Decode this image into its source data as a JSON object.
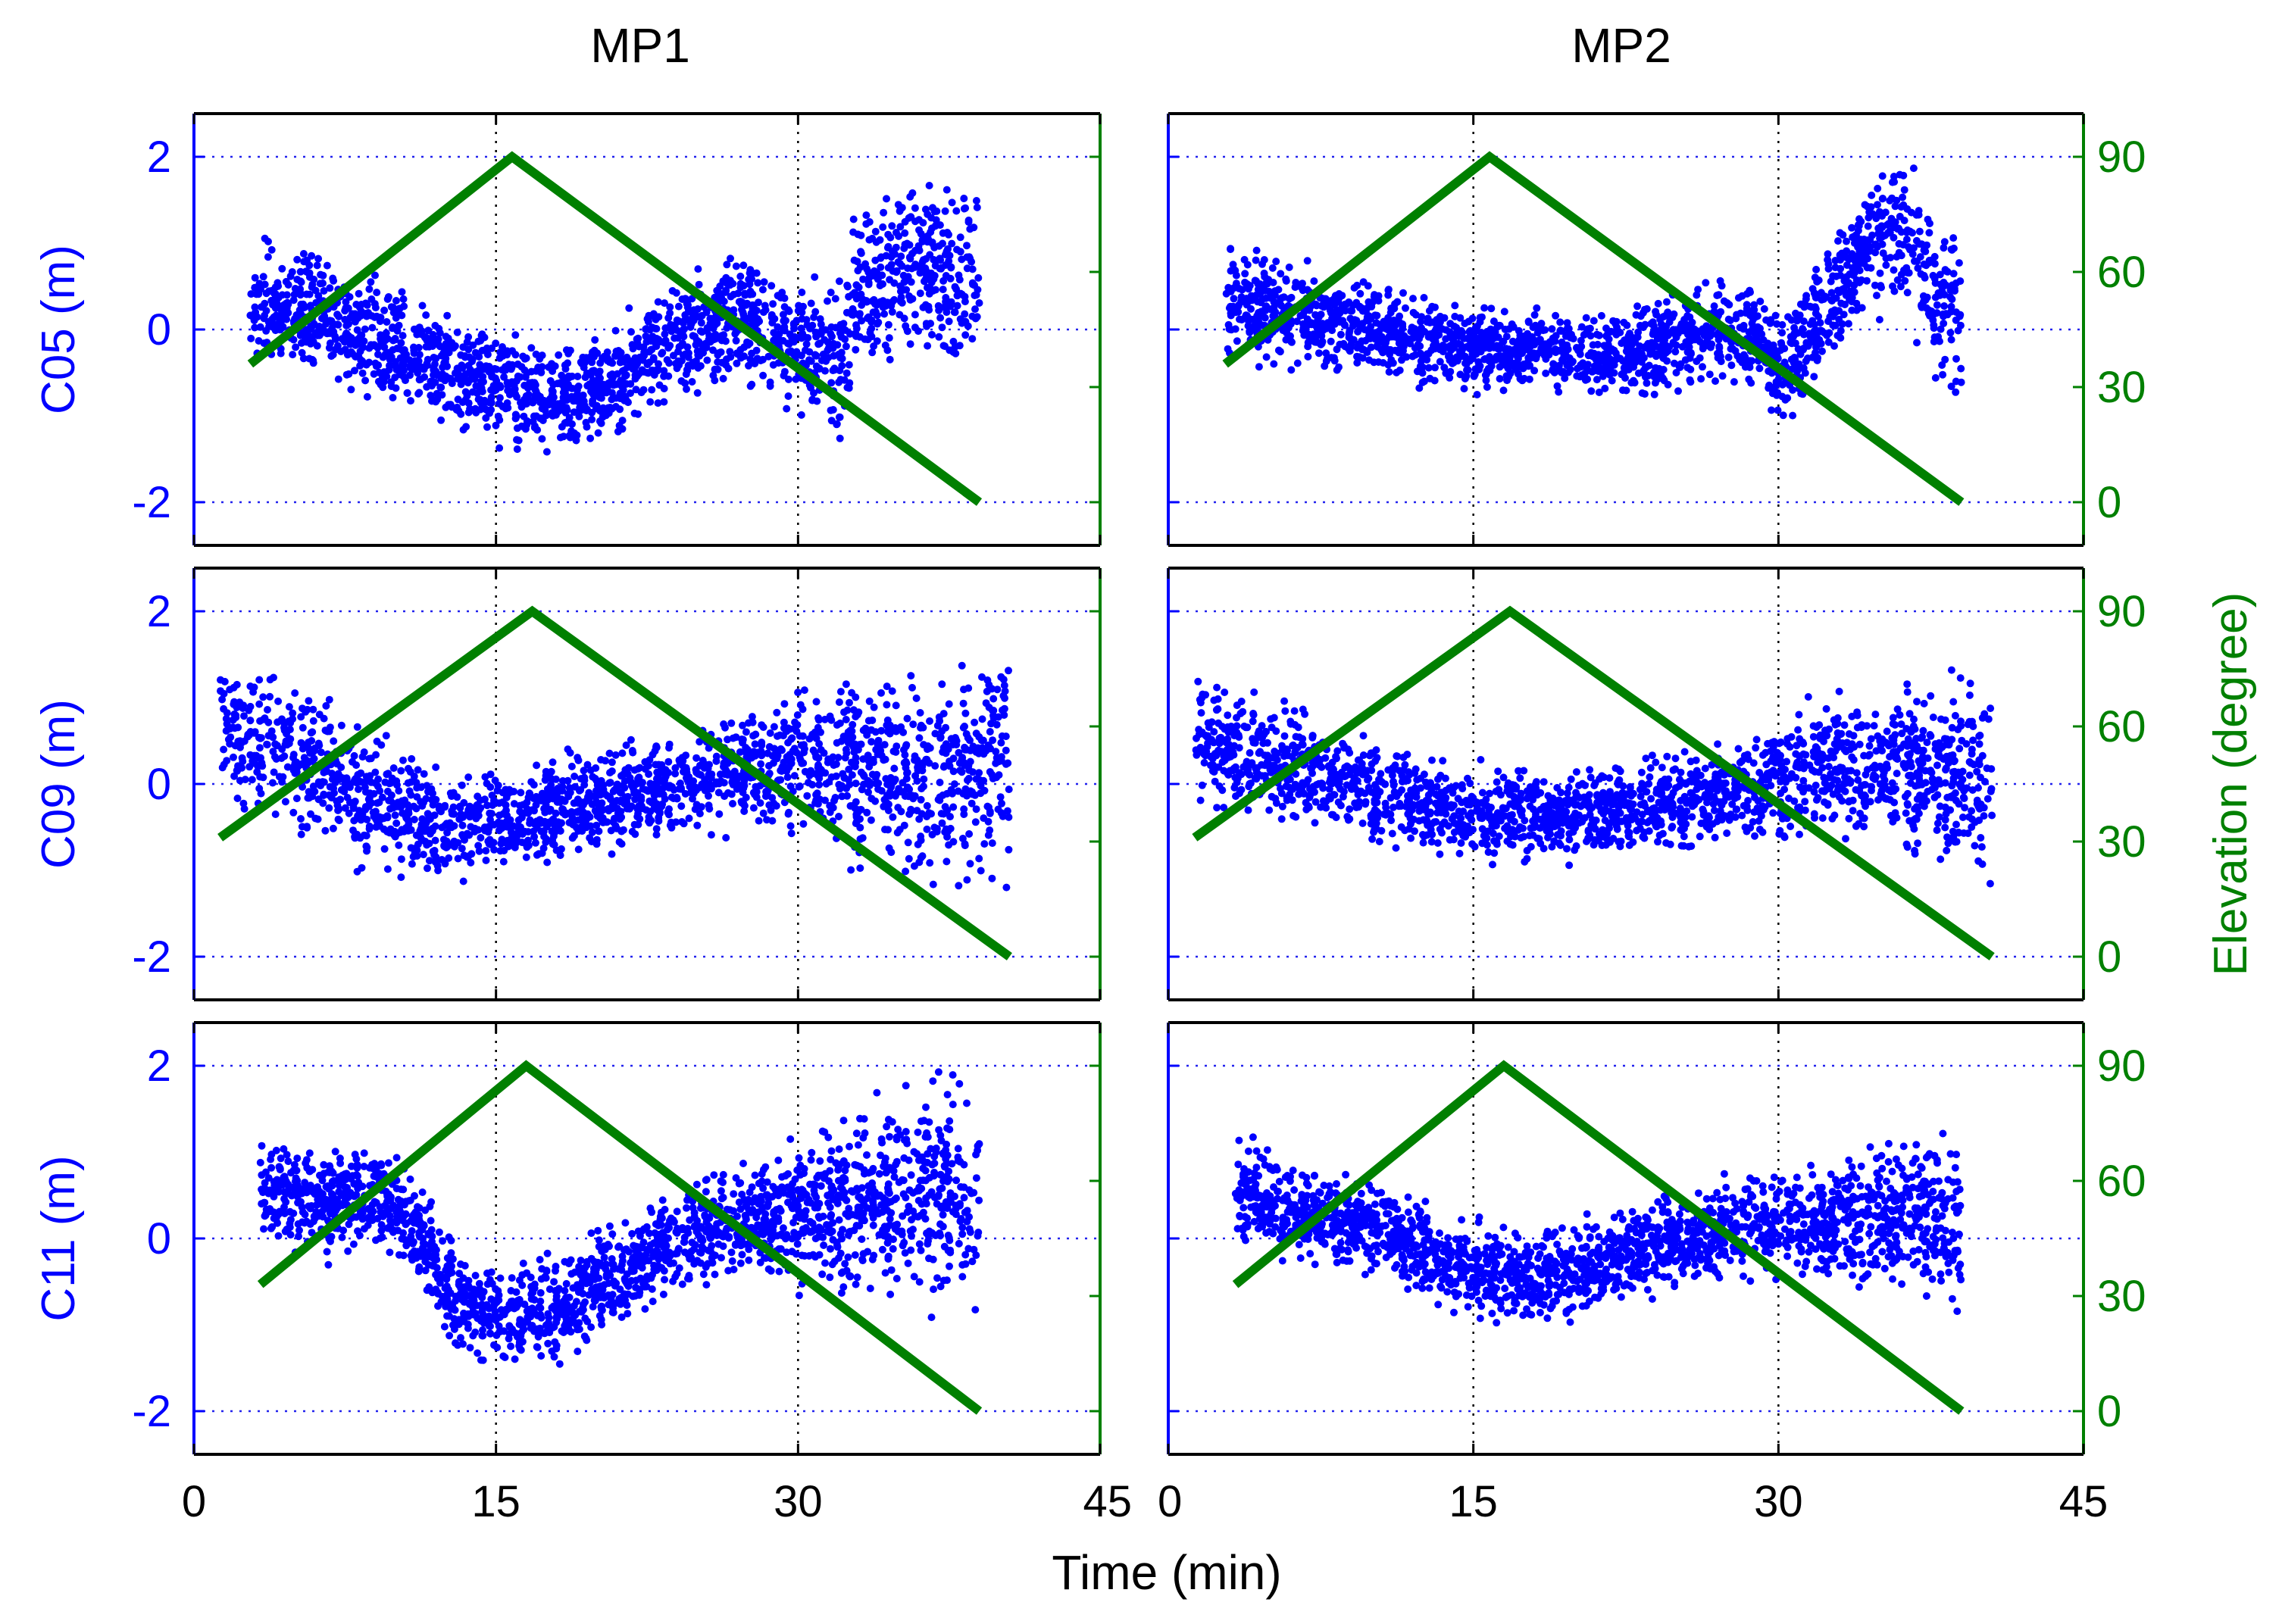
{
  "chart_data": {
    "type": "scatter",
    "columns": [
      "MP1",
      "MP2"
    ],
    "rows": [
      "C05",
      "C09",
      "C11"
    ],
    "x_axis": {
      "label": "Time (min)",
      "range": [
        0,
        45
      ],
      "ticks": [
        0,
        15,
        30,
        45
      ],
      "tick_labels": [
        "0",
        "15",
        "30",
        "45"
      ]
    },
    "left_axis": {
      "unit": "m",
      "range": [
        -2.5,
        2.5
      ],
      "ticks": [
        -2,
        0,
        2
      ],
      "tick_labels": [
        "-2",
        "0",
        "2"
      ],
      "color": "#0000ff"
    },
    "right_axis": {
      "label": "Elevation (degree)",
      "range": [
        -11.25,
        101.25
      ],
      "ticks": [
        0,
        30,
        60,
        90
      ],
      "tick_labels": [
        "0",
        "30",
        "60",
        "90"
      ],
      "color": "#008000"
    },
    "row_labels": [
      "C05 (m)",
      "C09 (m)",
      "C11 (m)"
    ],
    "grid": "dotted",
    "panels": [
      {
        "id": "C05-MP1",
        "column": "MP1",
        "satellite": "C05",
        "scatter_series": {
          "name": "multipath",
          "color": "#0000ff",
          "profile": [
            [
              3,
              0.3
            ],
            [
              6,
              0.2
            ],
            [
              10,
              -0.2
            ],
            [
              14,
              -0.6
            ],
            [
              18,
              -0.8
            ],
            [
              21,
              -0.6
            ],
            [
              24,
              -0.1
            ],
            [
              27,
              0.1
            ],
            [
              30,
              -0.2
            ],
            [
              32,
              -0.4
            ],
            [
              33,
              0.5
            ],
            [
              36,
              0.8
            ],
            [
              39,
              0.5
            ]
          ],
          "spread": [
            [
              3,
              0.55
            ],
            [
              10,
              0.5
            ],
            [
              18,
              0.45
            ],
            [
              24,
              0.5
            ],
            [
              30,
              0.55
            ],
            [
              33,
              0.7
            ],
            [
              39,
              0.9
            ]
          ],
          "x_range": [
            2.8,
            39
          ]
        },
        "elevation_series": {
          "name": "elevation",
          "color": "#008000",
          "x": [
            2.8,
            15.8,
            39
          ],
          "y": [
            36,
            90,
            0
          ]
        }
      },
      {
        "id": "C05-MP2",
        "column": "MP2",
        "satellite": "C05",
        "scatter_series": {
          "name": "multipath",
          "color": "#0000ff",
          "profile": [
            [
              3,
              0.3
            ],
            [
              8,
              0.1
            ],
            [
              14,
              -0.2
            ],
            [
              20,
              -0.3
            ],
            [
              24,
              -0.2
            ],
            [
              27,
              0.0
            ],
            [
              29,
              -0.1
            ],
            [
              30,
              -0.5
            ],
            [
              32,
              0.1
            ],
            [
              34,
              0.9
            ],
            [
              36,
              1.2
            ],
            [
              38,
              0.3
            ],
            [
              39,
              0.2
            ]
          ],
          "spread": [
            [
              3,
              0.5
            ],
            [
              10,
              0.4
            ],
            [
              20,
              0.35
            ],
            [
              27,
              0.4
            ],
            [
              30,
              0.5
            ],
            [
              34,
              0.6
            ],
            [
              39,
              0.8
            ]
          ],
          "x_range": [
            2.8,
            39
          ]
        },
        "elevation_series": {
          "name": "elevation",
          "color": "#008000",
          "x": [
            2.8,
            15.8,
            39
          ],
          "y": [
            36,
            90,
            0
          ]
        }
      },
      {
        "id": "C09-MP1",
        "column": "MP1",
        "satellite": "C09",
        "scatter_series": {
          "name": "multipath",
          "color": "#0000ff",
          "profile": [
            [
              1.5,
              0.6
            ],
            [
              5,
              0.4
            ],
            [
              9,
              -0.2
            ],
            [
              12,
              -0.5
            ],
            [
              16,
              -0.4
            ],
            [
              20,
              -0.2
            ],
            [
              25,
              0.0
            ],
            [
              28,
              0.2
            ],
            [
              32,
              0.2
            ],
            [
              36,
              0.1
            ],
            [
              40,
              0.2
            ]
          ],
          "spread": [
            [
              1.5,
              0.65
            ],
            [
              8,
              0.6
            ],
            [
              14,
              0.45
            ],
            [
              22,
              0.4
            ],
            [
              28,
              0.5
            ],
            [
              33,
              0.75
            ],
            [
              40,
              1.0
            ]
          ],
          "x_range": [
            1.3,
            40.5
          ]
        },
        "elevation_series": {
          "name": "elevation",
          "color": "#008000",
          "x": [
            1.3,
            16.8,
            40.5
          ],
          "y": [
            31,
            90,
            0
          ]
        }
      },
      {
        "id": "C09-MP2",
        "column": "MP2",
        "satellite": "C09",
        "scatter_series": {
          "name": "multipath",
          "color": "#0000ff",
          "profile": [
            [
              1.5,
              0.5
            ],
            [
              5,
              0.3
            ],
            [
              10,
              -0.1
            ],
            [
              15,
              -0.35
            ],
            [
              20,
              -0.35
            ],
            [
              25,
              -0.2
            ],
            [
              28,
              -0.1
            ],
            [
              32,
              0.2
            ],
            [
              36,
              0.2
            ],
            [
              40,
              0.1
            ]
          ],
          "spread": [
            [
              1.5,
              0.55
            ],
            [
              8,
              0.45
            ],
            [
              15,
              0.4
            ],
            [
              25,
              0.4
            ],
            [
              30,
              0.5
            ],
            [
              35,
              0.65
            ],
            [
              40,
              0.8
            ]
          ],
          "x_range": [
            1.3,
            40.5
          ]
        },
        "elevation_series": {
          "name": "elevation",
          "color": "#008000",
          "x": [
            1.3,
            16.8,
            40.5
          ],
          "y": [
            31,
            90,
            0
          ]
        }
      },
      {
        "id": "C11-MP1",
        "column": "MP1",
        "satellite": "C11",
        "scatter_series": {
          "name": "multipath",
          "color": "#0000ff",
          "profile": [
            [
              3,
              0.5
            ],
            [
              6,
              0.4
            ],
            [
              9,
              0.5
            ],
            [
              11,
              0.1
            ],
            [
              13,
              -0.7
            ],
            [
              16,
              -0.9
            ],
            [
              18,
              -0.8
            ],
            [
              21,
              -0.4
            ],
            [
              24,
              0.0
            ],
            [
              28,
              0.2
            ],
            [
              32,
              0.3
            ],
            [
              36,
              0.5
            ],
            [
              39,
              0.6
            ]
          ],
          "spread": [
            [
              3,
              0.5
            ],
            [
              9,
              0.45
            ],
            [
              15,
              0.45
            ],
            [
              21,
              0.45
            ],
            [
              28,
              0.5
            ],
            [
              33,
              0.8
            ],
            [
              39,
              1.0
            ]
          ],
          "x_range": [
            3.3,
            39
          ]
        },
        "elevation_series": {
          "name": "elevation",
          "color": "#008000",
          "x": [
            3.3,
            16.5,
            39
          ],
          "y": [
            33,
            90,
            0
          ]
        }
      },
      {
        "id": "C11-MP2",
        "column": "MP2",
        "satellite": "C11",
        "scatter_series": {
          "name": "multipath",
          "color": "#0000ff",
          "profile": [
            [
              3,
              0.6
            ],
            [
              6,
              0.3
            ],
            [
              9,
              0.2
            ],
            [
              13,
              -0.2
            ],
            [
              17,
              -0.5
            ],
            [
              20,
              -0.4
            ],
            [
              24,
              -0.1
            ],
            [
              28,
              0.1
            ],
            [
              32,
              0.2
            ],
            [
              36,
              0.3
            ],
            [
              39,
              0.1
            ]
          ],
          "spread": [
            [
              3,
              0.5
            ],
            [
              9,
              0.4
            ],
            [
              16,
              0.4
            ],
            [
              24,
              0.4
            ],
            [
              30,
              0.45
            ],
            [
              35,
              0.6
            ],
            [
              39,
              0.75
            ]
          ],
          "x_range": [
            3.3,
            39
          ]
        },
        "elevation_series": {
          "name": "elevation",
          "color": "#008000",
          "x": [
            3.3,
            16.5,
            39
          ],
          "y": [
            33,
            90,
            0
          ]
        }
      }
    ]
  }
}
